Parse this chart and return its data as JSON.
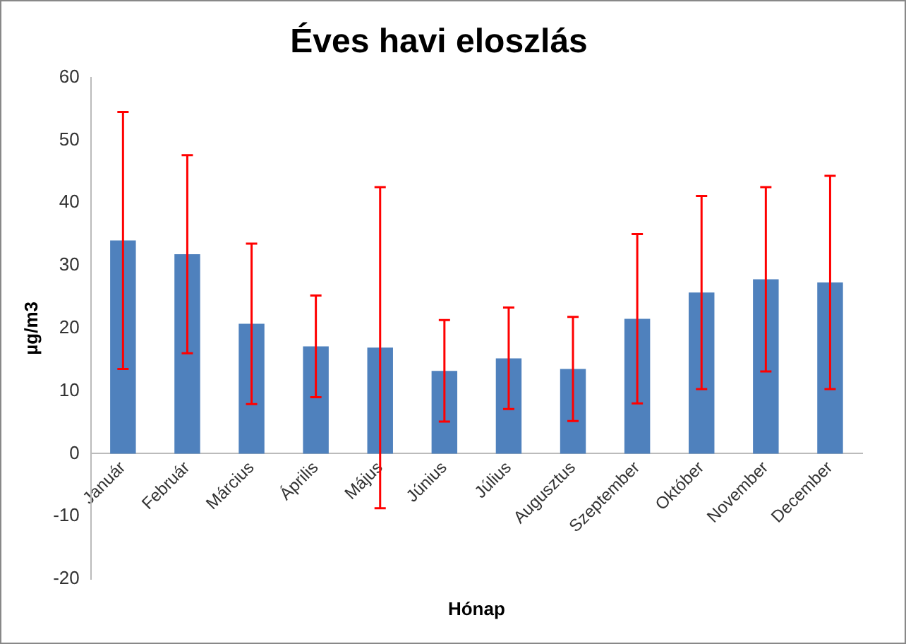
{
  "chart_data": {
    "type": "bar",
    "title": "Éves havi eloszlás",
    "xlabel": "Hónap",
    "ylabel": "µg/m3",
    "categories": [
      "Január",
      "Február",
      "Március",
      "Április",
      "Május",
      "Június",
      "Július",
      "Augusztus",
      "Szeptember",
      "Október",
      "November",
      "December"
    ],
    "values": [
      34,
      31.8,
      20.7,
      17.1,
      16.9,
      13.2,
      15.2,
      13.5,
      21.5,
      25.7,
      27.8,
      27.3
    ],
    "errors": [
      20.5,
      15.8,
      12.8,
      8.1,
      25.6,
      8.1,
      8.1,
      8.3,
      13.5,
      15.4,
      14.7,
      17
    ],
    "color": "#4f81bd",
    "ylim": [
      -20,
      60
    ],
    "yticks": [
      -20,
      -10,
      0,
      10,
      20,
      30,
      40,
      50,
      60
    ],
    "grid": false,
    "legend": false
  }
}
